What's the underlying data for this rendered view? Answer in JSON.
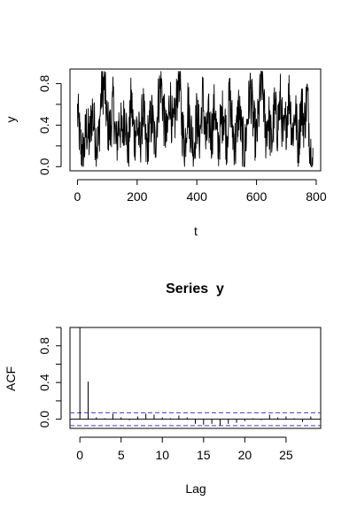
{
  "chart_data": [
    {
      "type": "line",
      "title": "",
      "xlabel": "t",
      "ylabel": "y",
      "xlim": [
        -25,
        815
      ],
      "ylim": [
        -0.04,
        0.94
      ],
      "x_ticks": [
        0,
        200,
        400,
        600,
        800
      ],
      "x_tick_labels": [
        "0",
        "200",
        "400",
        "600",
        "800"
      ],
      "y_ticks": [
        0.0,
        0.4,
        0.8
      ],
      "y_tick_labels": [
        "0.0",
        "0.4",
        "0.8"
      ],
      "grid": false,
      "n": 790,
      "series": [
        {
          "x": [
            0,
            10,
            20,
            30,
            40,
            50,
            60,
            70,
            80,
            90,
            100,
            110,
            120,
            130,
            140,
            150,
            160,
            170,
            180,
            190,
            200,
            210,
            220,
            230,
            240,
            250,
            260,
            270,
            280,
            290,
            300,
            310,
            320,
            330,
            340,
            350,
            360,
            370,
            380,
            390,
            400,
            410,
            420,
            430,
            440,
            450,
            460,
            470,
            480,
            490,
            500,
            510,
            520,
            530,
            540,
            550,
            560,
            570,
            580,
            590,
            600,
            610,
            620,
            630,
            640,
            650,
            660,
            670,
            680,
            690,
            700,
            710,
            720,
            730,
            740,
            750,
            760,
            770,
            780,
            785
          ],
          "y": [
            0.52,
            0.22,
            0.1,
            0.38,
            0.25,
            0.55,
            0.3,
            0.2,
            0.72,
            0.8,
            0.4,
            0.35,
            0.62,
            0.18,
            0.45,
            0.3,
            0.55,
            0.1,
            0.65,
            0.28,
            0.4,
            0.22,
            0.58,
            0.15,
            0.35,
            0.48,
            0.2,
            0.6,
            0.85,
            0.45,
            0.25,
            0.7,
            0.3,
            0.55,
            0.92,
            0.4,
            0.2,
            0.62,
            0.35,
            0.18,
            0.5,
            0.28,
            0.7,
            0.22,
            0.45,
            0.3,
            0.6,
            0.15,
            0.4,
            0.55,
            0.25,
            0.68,
            0.35,
            0.2,
            0.58,
            0.3,
            0.12,
            0.48,
            0.75,
            0.4,
            0.25,
            0.62,
            0.85,
            0.3,
            0.5,
            0.2,
            0.55,
            0.38,
            0.65,
            0.25,
            0.45,
            0.72,
            0.3,
            0.55,
            0.18,
            0.62,
            0.4,
            0.7,
            0.2,
            0.05
          ]
        }
      ]
    },
    {
      "type": "bar",
      "title": "Series  y",
      "xlabel": "Lag",
      "ylabel": "ACF",
      "xlim": [
        -1.2,
        29.2
      ],
      "ylim": [
        -0.1,
        1.0
      ],
      "x_ticks": [
        0,
        5,
        10,
        15,
        20,
        25
      ],
      "x_tick_labels": [
        "0",
        "5",
        "10",
        "15",
        "20",
        "25"
      ],
      "y_ticks": [
        0.0,
        0.4,
        0.8
      ],
      "y_tick_labels": [
        "0.0",
        "0.4",
        "0.8"
      ],
      "confidence_bound": 0.07,
      "confidence_color": "#3b3bd0",
      "grid": false,
      "lags": [
        0,
        1,
        2,
        3,
        4,
        5,
        6,
        7,
        8,
        9,
        10,
        11,
        12,
        13,
        14,
        15,
        16,
        17,
        18,
        19,
        20,
        21,
        22,
        23,
        24,
        25,
        26,
        27,
        28
      ],
      "values": [
        1.0,
        0.41,
        0.02,
        0.01,
        0.06,
        0.02,
        -0.01,
        0.03,
        0.06,
        0.05,
        0.02,
        0.01,
        0.04,
        0.02,
        -0.05,
        -0.06,
        -0.05,
        -0.07,
        -0.05,
        -0.04,
        -0.02,
        0.01,
        -0.01,
        0.05,
        0.02,
        0.03,
        0.01,
        -0.03,
        0.03
      ]
    }
  ]
}
